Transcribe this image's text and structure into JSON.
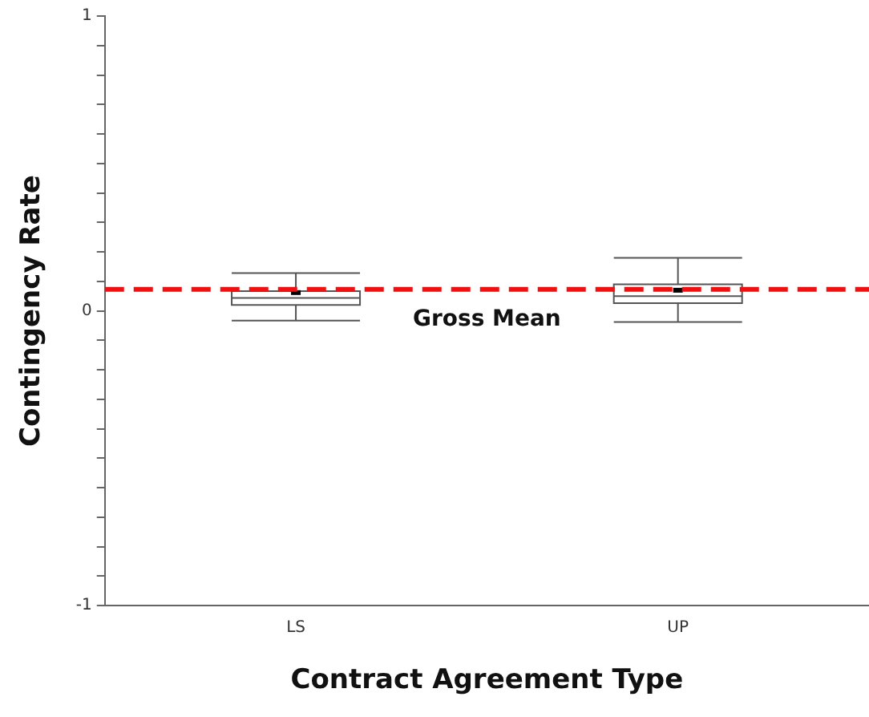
{
  "chart_data": {
    "type": "box",
    "xlabel": "Contract Agreement Type",
    "ylabel": "Contingency Rate",
    "categories": [
      "LS",
      "UP"
    ],
    "boxes": [
      {
        "low": -0.033,
        "q1": 0.02,
        "median": 0.044,
        "q3": 0.067,
        "high": 0.128,
        "mean": 0.062
      },
      {
        "low": -0.038,
        "q1": 0.026,
        "median": 0.05,
        "q3": 0.09,
        "high": 0.18,
        "mean": 0.07
      }
    ],
    "ylim": [
      -1,
      1
    ],
    "yticks": [
      -1,
      {
        "value": -0.9,
        "label": null
      },
      {
        "value": -0.8,
        "label": null
      },
      {
        "value": -0.7,
        "label": null
      },
      {
        "value": -0.6,
        "label": null
      },
      {
        "value": -0.5,
        "label": null
      },
      {
        "value": -0.4,
        "label": null
      },
      {
        "value": -0.3,
        "label": null
      },
      {
        "value": -0.2,
        "label": null
      },
      {
        "value": -0.1,
        "label": null
      },
      0,
      {
        "value": 0.1,
        "label": null
      },
      {
        "value": 0.2,
        "label": null
      },
      {
        "value": 0.3,
        "label": null
      },
      {
        "value": 0.4,
        "label": null
      },
      {
        "value": 0.5,
        "label": null
      },
      {
        "value": 0.6,
        "label": null
      },
      {
        "value": 0.7,
        "label": null
      },
      {
        "value": 0.8,
        "label": null
      },
      {
        "value": 0.9,
        "label": null
      },
      1
    ],
    "ref_lines": [
      {
        "axis": "y",
        "value": 0.073,
        "label": "Gross Mean",
        "color": "#ee1111",
        "line_style": "dashed"
      }
    ],
    "grid": false,
    "legend": false
  }
}
